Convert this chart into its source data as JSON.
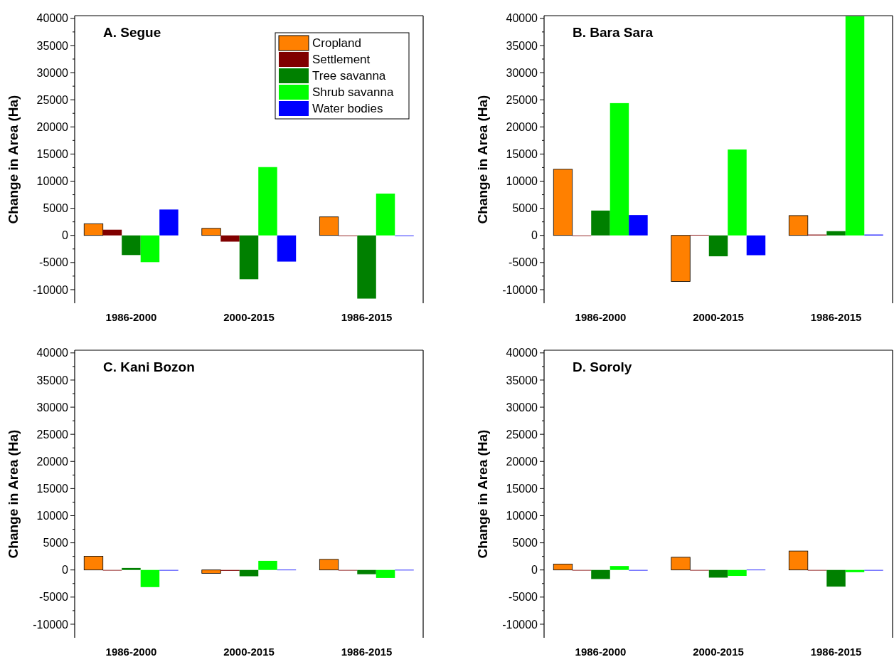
{
  "chart_data": [
    {
      "type": "bar",
      "title": "A. Segue",
      "ylabel": "Change in Area (Ha)",
      "categories": [
        "1986-2000",
        "2000-2015",
        "1986-2015"
      ],
      "ylim": [
        -12500,
        40500
      ],
      "yticks": [
        -10000,
        {
          "value": -7500,
          "label": null
        },
        -5000,
        {
          "value": -2500,
          "label": null
        },
        0,
        {
          "value": 2500,
          "label": null
        },
        5000,
        {
          "value": 7500,
          "label": null
        },
        10000,
        {
          "value": 12500,
          "label": null
        },
        15000,
        {
          "value": 17500,
          "label": null
        },
        20000,
        {
          "value": 22500,
          "label": null
        },
        25000,
        {
          "value": 27500,
          "label": null
        },
        30000,
        {
          "value": 32500,
          "label": null
        },
        35000,
        {
          "value": 37500,
          "label": null
        },
        40000
      ],
      "legend": "top right",
      "series": [
        {
          "name": "Cropland",
          "color": "#ff8000",
          "values": [
            2150,
            1300,
            3410
          ]
        },
        {
          "name": "Settlement",
          "color": "#800000",
          "values": [
            1050,
            -1150,
            -100
          ]
        },
        {
          "name": "Tree savanna",
          "color": "#008000",
          "values": [
            -3620,
            -8080,
            -11650
          ]
        },
        {
          "name": "Shrub savanna",
          "color": "#00ff00",
          "values": [
            -4930,
            12590,
            7710
          ]
        },
        {
          "name": "Water bodies",
          "color": "#0000ff",
          "values": [
            4770,
            -4830,
            -50
          ]
        }
      ]
    },
    {
      "type": "bar",
      "title": "B. Bara Sara",
      "ylabel": "Change in Area (Ha)",
      "categories": [
        "1986-2000",
        "2000-2015",
        "1986-2015"
      ],
      "ylim": [
        -12500,
        40500
      ],
      "yticks": [
        -10000,
        {
          "value": -7500,
          "label": null
        },
        -5000,
        {
          "value": -2500,
          "label": null
        },
        0,
        {
          "value": 2500,
          "label": null
        },
        5000,
        {
          "value": 7500,
          "label": null
        },
        10000,
        {
          "value": 12500,
          "label": null
        },
        15000,
        {
          "value": 17500,
          "label": null
        },
        20000,
        {
          "value": 22500,
          "label": null
        },
        25000,
        {
          "value": 27500,
          "label": null
        },
        30000,
        {
          "value": 32500,
          "label": null
        },
        35000,
        {
          "value": 37500,
          "label": null
        },
        40000
      ],
      "series": [
        {
          "color": "#ff8000",
          "values": [
            12190,
            -8490,
            3650
          ]
        },
        {
          "color": "#800000",
          "values": [
            -50,
            100,
            150
          ]
        },
        {
          "color": "#008000",
          "values": [
            4580,
            -3850,
            780
          ]
        },
        {
          "color": "#00ff00",
          "values": [
            24380,
            15830,
            40400
          ]
        },
        {
          "color": "#0000ff",
          "values": [
            3750,
            -3650,
            150
          ]
        }
      ]
    },
    {
      "type": "bar",
      "title": "C. Kani Bozon",
      "ylabel": "Change in Area (Ha)",
      "categories": [
        "1986-2000",
        "2000-2015",
        "1986-2015"
      ],
      "ylim": [
        -12500,
        40500
      ],
      "yticks": [
        -10000,
        {
          "value": -7500,
          "label": null
        },
        -5000,
        {
          "value": -2500,
          "label": null
        },
        0,
        {
          "value": 2500,
          "label": null
        },
        5000,
        {
          "value": 7500,
          "label": null
        },
        10000,
        {
          "value": 12500,
          "label": null
        },
        15000,
        {
          "value": 17500,
          "label": null
        },
        20000,
        {
          "value": 22500,
          "label": null
        },
        25000,
        {
          "value": 27500,
          "label": null
        },
        30000,
        {
          "value": 32500,
          "label": null
        },
        35000,
        {
          "value": 37500,
          "label": null
        },
        40000
      ],
      "series": [
        {
          "color": "#ff8000",
          "values": [
            2530,
            -630,
            1950
          ]
        },
        {
          "color": "#800000",
          "values": [
            -100,
            -150,
            -100
          ]
        },
        {
          "color": "#008000",
          "values": [
            370,
            -1160,
            -790
          ]
        },
        {
          "color": "#00ff00",
          "values": [
            -3160,
            1680,
            -1470
          ]
        },
        {
          "color": "#0000ff",
          "values": [
            -30,
            50,
            30
          ]
        }
      ]
    },
    {
      "type": "bar",
      "title": "D. Soroly",
      "ylabel": "Change in Area (Ha)",
      "categories": [
        "1986-2000",
        "2000-2015",
        "1986-2015"
      ],
      "ylim": [
        -12500,
        40500
      ],
      "yticks": [
        -10000,
        {
          "value": -7500,
          "label": null
        },
        -5000,
        {
          "value": -2500,
          "label": null
        },
        0,
        {
          "value": 2500,
          "label": null
        },
        5000,
        {
          "value": 7500,
          "label": null
        },
        10000,
        {
          "value": 12500,
          "label": null
        },
        15000,
        {
          "value": 17500,
          "label": null
        },
        20000,
        {
          "value": 22500,
          "label": null
        },
        25000,
        {
          "value": 27500,
          "label": null
        },
        30000,
        {
          "value": 32500,
          "label": null
        },
        35000,
        {
          "value": 37500,
          "label": null
        },
        40000
      ],
      "series": [
        {
          "color": "#ff8000",
          "values": [
            1090,
            2340,
            3490
          ]
        },
        {
          "color": "#800000",
          "values": [
            -50,
            -50,
            -50
          ]
        },
        {
          "color": "#008000",
          "values": [
            -1670,
            -1410,
            -3070
          ]
        },
        {
          "color": "#00ff00",
          "values": [
            730,
            -1090,
            -420
          ]
        },
        {
          "color": "#0000ff",
          "values": [
            -100,
            50,
            -50
          ]
        }
      ]
    }
  ]
}
